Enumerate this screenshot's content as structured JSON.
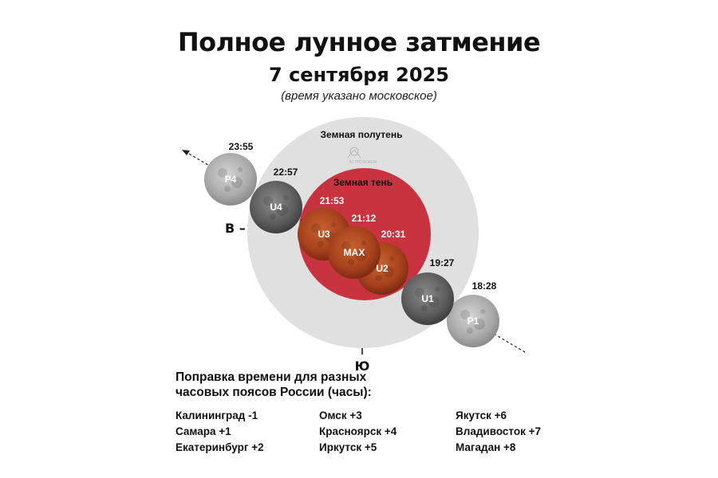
{
  "title": "Полное лунное затмение",
  "date": "7 сентября 2025",
  "note": "(время указано московское)",
  "diagram": {
    "penumbra_label": "Земная полутень",
    "umbra_label": "Земная тень",
    "logo_text": "АСТРОФОБИЯ",
    "direction_west": "В –",
    "direction_south": "Ю",
    "phases": [
      {
        "label": "P4",
        "time": "23:55",
        "type": "penumbral"
      },
      {
        "label": "U4",
        "time": "22:57",
        "type": "partial"
      },
      {
        "label": "U3",
        "time": "21:53",
        "type": "total"
      },
      {
        "label": "MAX",
        "time": "21:12",
        "type": "total"
      },
      {
        "label": "U2",
        "time": "20:31",
        "type": "total"
      },
      {
        "label": "U1",
        "time": "19:27",
        "type": "partial"
      },
      {
        "label": "P1",
        "time": "18:28",
        "type": "penumbral"
      }
    ],
    "colors": {
      "penumbra": "#e0e0e0",
      "umbra": "#c8333f",
      "moon_full": "#b8b8b8",
      "moon_partial": "#6e6e6e",
      "moon_total": "#a8431f"
    }
  },
  "corrections": {
    "title_line1": "Поправка времени для разных",
    "title_line2": "часовых поясов России (часы):",
    "columns": [
      [
        "Калининград -1",
        "Самара +1",
        "Екатеринбург +2"
      ],
      [
        "Омск +3",
        "Красноярск +4",
        "Иркутск +5"
      ],
      [
        "Якутск +6",
        "Владивосток +7",
        "Магадан +8"
      ]
    ]
  }
}
